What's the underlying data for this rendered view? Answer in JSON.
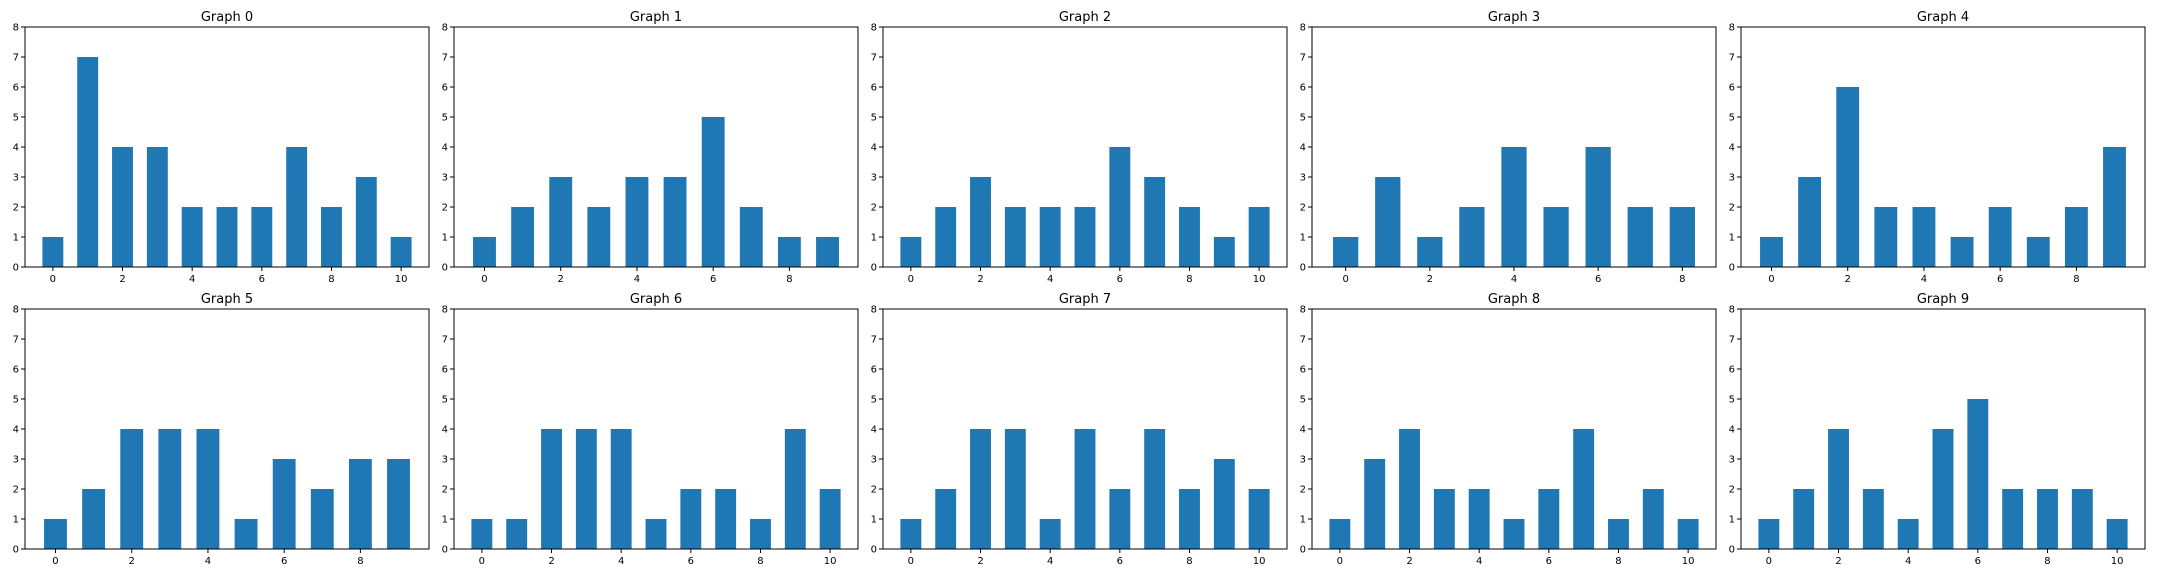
{
  "chart_data": [
    {
      "type": "bar",
      "title": "Graph 0",
      "x": [
        0,
        1,
        2,
        3,
        4,
        5,
        6,
        7,
        8,
        9,
        10
      ],
      "values": [
        1,
        7,
        4,
        4,
        2,
        2,
        2,
        4,
        2,
        3,
        1
      ],
      "xticks": [
        0,
        2,
        4,
        6,
        8,
        10
      ],
      "yticks": [
        0,
        1,
        2,
        3,
        4,
        5,
        6,
        7,
        8
      ],
      "xlim": [
        -0.8,
        10.8
      ],
      "ylim": [
        0,
        8
      ]
    },
    {
      "type": "bar",
      "title": "Graph 1",
      "x": [
        0,
        1,
        2,
        3,
        4,
        5,
        6,
        7,
        8,
        9
      ],
      "values": [
        1,
        2,
        3,
        2,
        3,
        3,
        5,
        2,
        1,
        1
      ],
      "xticks": [
        0,
        2,
        4,
        6,
        8
      ],
      "yticks": [
        0,
        1,
        2,
        3,
        4,
        5,
        6,
        7,
        8
      ],
      "xlim": [
        -0.8,
        9.8
      ],
      "ylim": [
        0,
        8
      ]
    },
    {
      "type": "bar",
      "title": "Graph 2",
      "x": [
        0,
        1,
        2,
        3,
        4,
        5,
        6,
        7,
        8,
        9,
        10
      ],
      "values": [
        1,
        2,
        3,
        2,
        2,
        2,
        4,
        3,
        2,
        1,
        2
      ],
      "xticks": [
        0,
        2,
        4,
        6,
        8,
        10
      ],
      "yticks": [
        0,
        1,
        2,
        3,
        4,
        5,
        6,
        7,
        8
      ],
      "xlim": [
        -0.8,
        10.8
      ],
      "ylim": [
        0,
        8
      ]
    },
    {
      "type": "bar",
      "title": "Graph 3",
      "x": [
        0,
        1,
        2,
        3,
        4,
        5,
        6,
        7,
        8
      ],
      "values": [
        1,
        3,
        1,
        2,
        4,
        2,
        4,
        2,
        2
      ],
      "xticks": [
        0,
        2,
        4,
        6,
        8
      ],
      "yticks": [
        0,
        1,
        2,
        3,
        4,
        5,
        6,
        7,
        8
      ],
      "xlim": [
        -0.8,
        8.8
      ],
      "ylim": [
        0,
        8
      ]
    },
    {
      "type": "bar",
      "title": "Graph 4",
      "x": [
        0,
        1,
        2,
        3,
        4,
        5,
        6,
        7,
        8,
        9
      ],
      "values": [
        1,
        3,
        6,
        2,
        2,
        1,
        2,
        1,
        2,
        4
      ],
      "xticks": [
        0,
        2,
        4,
        6,
        8
      ],
      "yticks": [
        0,
        1,
        2,
        3,
        4,
        5,
        6,
        7,
        8
      ],
      "xlim": [
        -0.8,
        9.8
      ],
      "ylim": [
        0,
        8
      ]
    },
    {
      "type": "bar",
      "title": "Graph 5",
      "x": [
        0,
        1,
        2,
        3,
        4,
        5,
        6,
        7,
        8,
        9
      ],
      "values": [
        1,
        2,
        4,
        4,
        4,
        1,
        3,
        2,
        3,
        3
      ],
      "xticks": [
        0,
        2,
        4,
        6,
        8
      ],
      "yticks": [
        0,
        1,
        2,
        3,
        4,
        5,
        6,
        7,
        8
      ],
      "xlim": [
        -0.8,
        9.8
      ],
      "ylim": [
        0,
        8
      ]
    },
    {
      "type": "bar",
      "title": "Graph 6",
      "x": [
        0,
        1,
        2,
        3,
        4,
        5,
        6,
        7,
        8,
        9,
        10
      ],
      "values": [
        1,
        1,
        4,
        4,
        4,
        1,
        2,
        2,
        1,
        4,
        2
      ],
      "xticks": [
        0,
        2,
        4,
        6,
        8,
        10
      ],
      "yticks": [
        0,
        1,
        2,
        3,
        4,
        5,
        6,
        7,
        8
      ],
      "xlim": [
        -0.8,
        10.8
      ],
      "ylim": [
        0,
        8
      ]
    },
    {
      "type": "bar",
      "title": "Graph 7",
      "x": [
        0,
        1,
        2,
        3,
        4,
        5,
        6,
        7,
        8,
        9,
        10
      ],
      "values": [
        1,
        2,
        4,
        4,
        1,
        4,
        2,
        4,
        2,
        3,
        2
      ],
      "xticks": [
        0,
        2,
        4,
        6,
        8,
        10
      ],
      "yticks": [
        0,
        1,
        2,
        3,
        4,
        5,
        6,
        7,
        8
      ],
      "xlim": [
        -0.8,
        10.8
      ],
      "ylim": [
        0,
        8
      ]
    },
    {
      "type": "bar",
      "title": "Graph 8",
      "x": [
        0,
        1,
        2,
        3,
        4,
        5,
        6,
        7,
        8,
        9,
        10
      ],
      "values": [
        1,
        3,
        4,
        2,
        2,
        1,
        2,
        4,
        1,
        2,
        1
      ],
      "xticks": [
        0,
        2,
        4,
        6,
        8,
        10
      ],
      "yticks": [
        0,
        1,
        2,
        3,
        4,
        5,
        6,
        7,
        8
      ],
      "xlim": [
        -0.8,
        10.8
      ],
      "ylim": [
        0,
        8
      ]
    },
    {
      "type": "bar",
      "title": "Graph 9",
      "x": [
        0,
        1,
        2,
        3,
        4,
        5,
        6,
        7,
        8,
        9,
        10
      ],
      "values": [
        1,
        2,
        4,
        2,
        1,
        4,
        5,
        2,
        2,
        2,
        1
      ],
      "xticks": [
        0,
        2,
        4,
        6,
        8,
        10
      ],
      "yticks": [
        0,
        1,
        2,
        3,
        4,
        5,
        6,
        7,
        8
      ],
      "xlim": [
        -0.8,
        10.8
      ],
      "ylim": [
        0,
        8
      ]
    }
  ],
  "colors": {
    "bar": "#1f77b4",
    "axes": "#000000",
    "background": "#ffffff"
  }
}
